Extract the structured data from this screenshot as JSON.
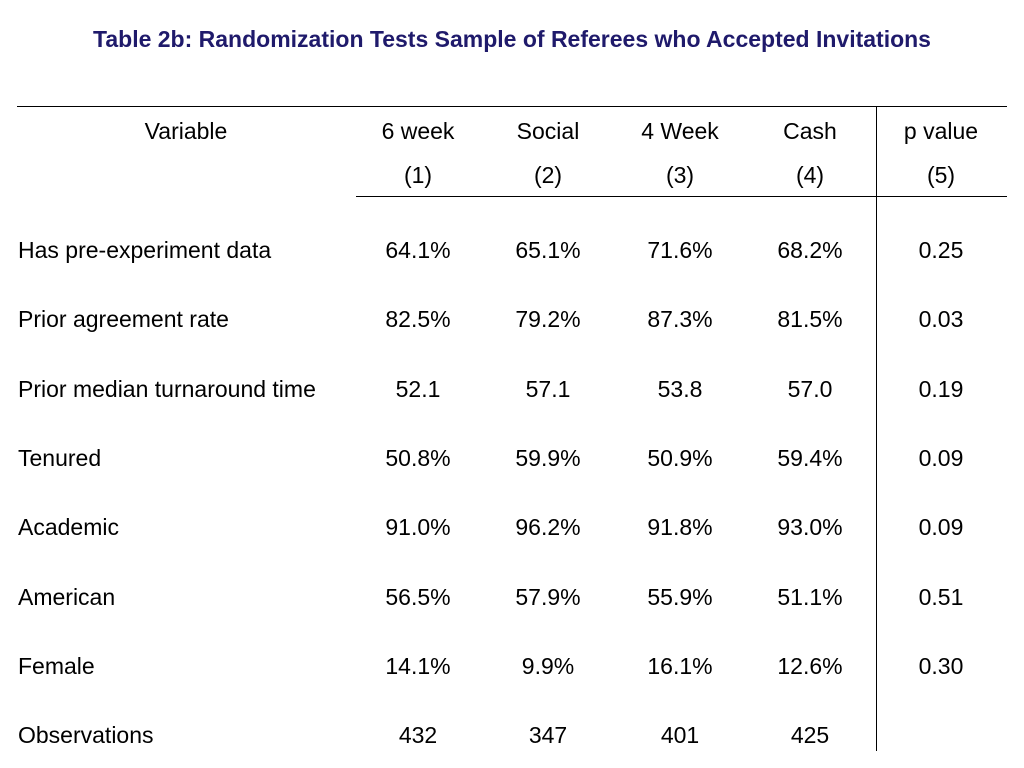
{
  "title": "Table 2b: Randomization Tests Sample of Referees who Accepted Invitations",
  "header": {
    "variable": "Variable",
    "columns": [
      {
        "name": "6 week",
        "num": "(1)"
      },
      {
        "name": "Social",
        "num": "(2)"
      },
      {
        "name": "4 Week",
        "num": "(3)"
      },
      {
        "name": "Cash",
        "num": "(4)"
      },
      {
        "name": "p value",
        "num": "(5)"
      }
    ]
  },
  "rows": [
    {
      "label": "Has pre-experiment data",
      "values": [
        "64.1%",
        "65.1%",
        "71.6%",
        "68.2%",
        "0.25"
      ]
    },
    {
      "label": "Prior agreement rate",
      "values": [
        "82.5%",
        "79.2%",
        "87.3%",
        "81.5%",
        "0.03"
      ]
    },
    {
      "label": "Prior median turnaround time",
      "values": [
        "52.1",
        "57.1",
        "53.8",
        "57.0",
        "0.19"
      ]
    },
    {
      "label": "Tenured",
      "values": [
        "50.8%",
        "59.9%",
        "50.9%",
        "59.4%",
        "0.09"
      ]
    },
    {
      "label": "Academic",
      "values": [
        "91.0%",
        "96.2%",
        "91.8%",
        "93.0%",
        "0.09"
      ]
    },
    {
      "label": "American",
      "values": [
        "56.5%",
        "57.9%",
        "55.9%",
        "51.1%",
        "0.51"
      ]
    },
    {
      "label": "Female",
      "values": [
        "14.1%",
        "9.9%",
        "16.1%",
        "12.6%",
        "0.30"
      ]
    },
    {
      "label": "Observations",
      "values": [
        "432",
        "347",
        "401",
        "425",
        ""
      ]
    }
  ]
}
